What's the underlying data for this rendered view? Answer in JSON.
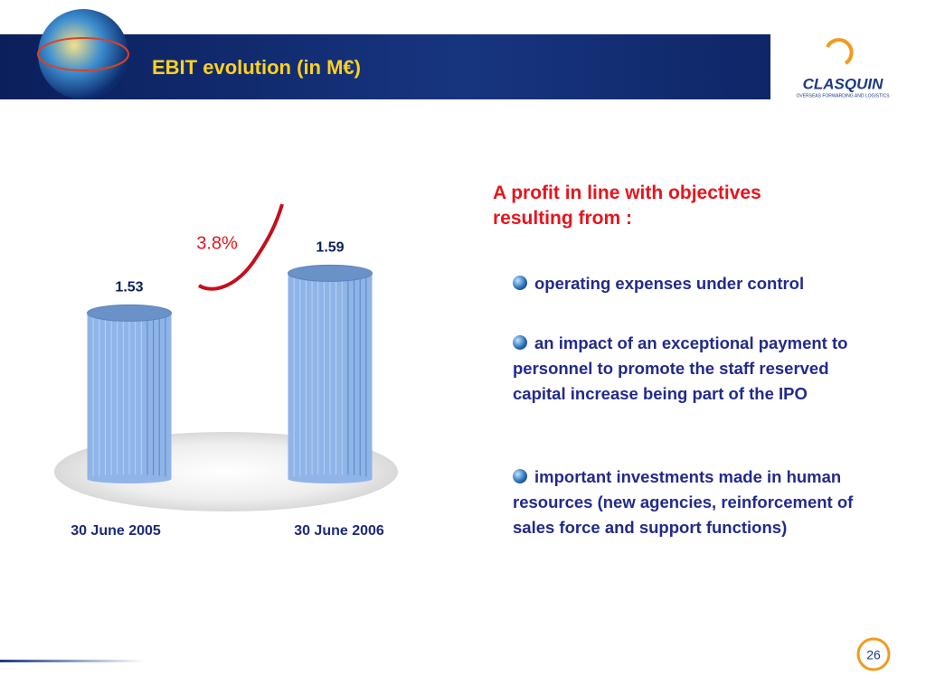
{
  "chart_data": {
    "type": "bar",
    "title": "EBIT evolution (in M€)",
    "categories": [
      "30 June 2005",
      "30 June 2006"
    ],
    "values": [
      1.53,
      1.59
    ],
    "color": "#8fb4e8",
    "ylim": [
      1.28,
      1.6
    ],
    "annotation": "3.8%"
  },
  "heading": "A profit in line with objectives resulting from :",
  "bullets": [
    "operating expenses under control",
    "an impact of an exceptional payment to personnel to promote the staff reserved capital increase being part of the IPO",
    "important investments made in human resources (new agencies, reinforcement of sales force and support functions)"
  ],
  "logo": {
    "name": "CLASQUIN",
    "tagline": "OVERSEAS FORWARDING AND LOGISTICS"
  },
  "page_number": "26"
}
